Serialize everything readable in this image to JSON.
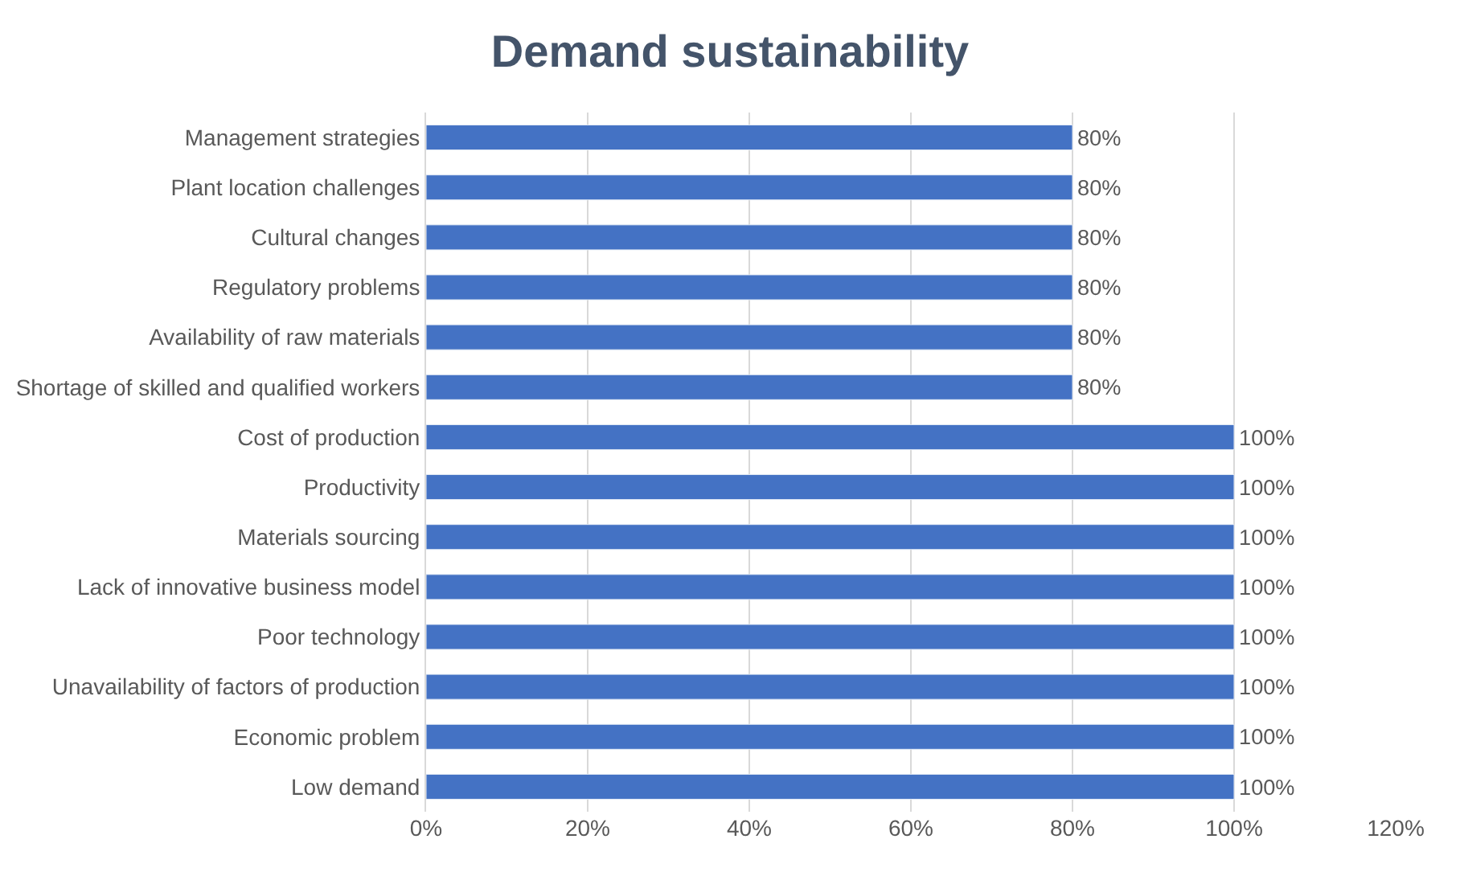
{
  "chart_data": {
    "type": "bar",
    "orientation": "horizontal",
    "title": "Demand sustainability",
    "categories": [
      "Management strategies",
      "Plant location challenges",
      "Cultural changes",
      "Regulatory problems",
      "Availability of raw materials",
      "Shortage of skilled and qualified workers",
      "Cost of production",
      "Productivity",
      "Materials sourcing",
      "Lack of innovative business model",
      "Poor technology",
      "Unavailability of factors of production",
      "Economic problem",
      "Low demand"
    ],
    "values": [
      80,
      80,
      80,
      80,
      80,
      80,
      100,
      100,
      100,
      100,
      100,
      100,
      100,
      100
    ],
    "value_labels": [
      "80%",
      "80%",
      "80%",
      "80%",
      "80%",
      "80%",
      "100%",
      "100%",
      "100%",
      "100%",
      "100%",
      "100%",
      "100%",
      "100%"
    ],
    "color": "#4472c4",
    "xlim": [
      0,
      120
    ],
    "xticks": [
      {
        "value": 0,
        "label": "0%"
      },
      {
        "value": 20,
        "label": "20%"
      },
      {
        "value": 40,
        "label": "40%"
      },
      {
        "value": 60,
        "label": "60%"
      },
      {
        "value": 80,
        "label": "80%"
      },
      {
        "value": 100,
        "label": "100%"
      },
      {
        "value": 120,
        "label": "120%"
      }
    ],
    "grid": "x",
    "legend": false
  }
}
